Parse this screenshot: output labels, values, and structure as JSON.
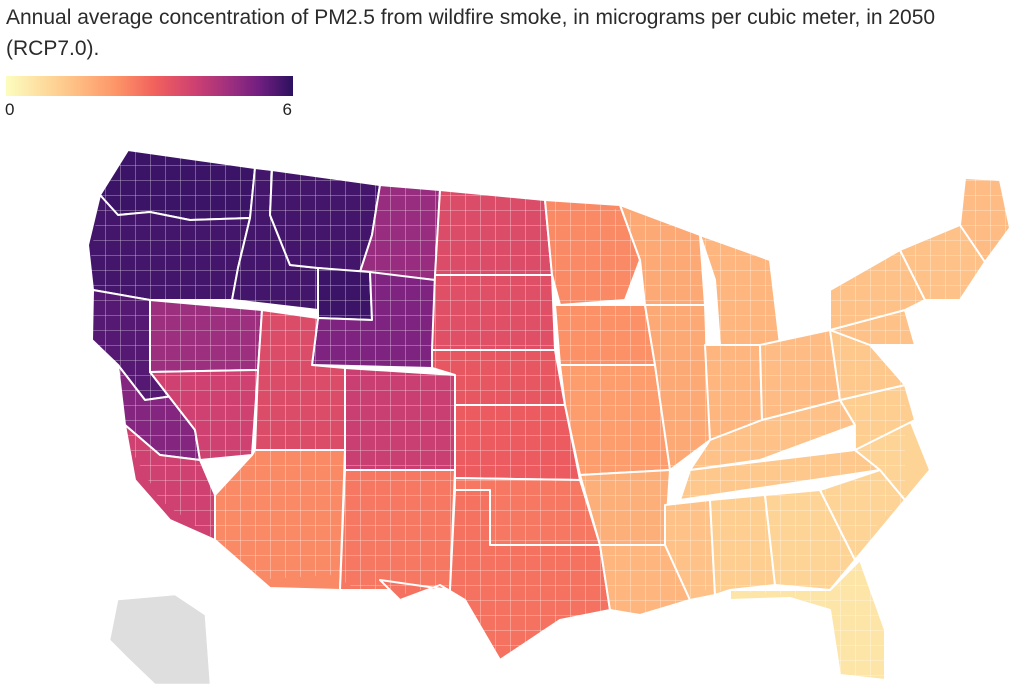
{
  "title": "Annual average concentration of PM2.5 from wildfire smoke, in micrograms per cubic meter, in 2050 (RCP7.0).",
  "legend": {
    "min_label": "0",
    "max_label": "6",
    "colors": [
      "#fcfdbf",
      "#feca8d",
      "#fd9668",
      "#f1605d",
      "#cd4071",
      "#9e2f7f",
      "#721f81",
      "#2c115f"
    ]
  },
  "colors": {
    "background": "#ffffff",
    "state_border": "#ffffff",
    "county_border": "#ffffff",
    "no_data": "#dedede"
  },
  "regions": [
    {
      "id": "washington",
      "value": 5.8
    },
    {
      "id": "oregon",
      "value": 5.7
    },
    {
      "id": "idaho",
      "value": 5.7
    },
    {
      "id": "montana-west",
      "value": 5.7
    },
    {
      "id": "montana-east",
      "value": 4.4
    },
    {
      "id": "wyoming-nw",
      "value": 5.8
    },
    {
      "id": "wyoming-e",
      "value": 4.9
    },
    {
      "id": "california-north",
      "value": 5.5
    },
    {
      "id": "california-central",
      "value": 4.8
    },
    {
      "id": "california-south",
      "value": 3.4
    },
    {
      "id": "nevada-north",
      "value": 4.3
    },
    {
      "id": "nevada-south",
      "value": 3.4
    },
    {
      "id": "utah",
      "value": 3.1
    },
    {
      "id": "colorado",
      "value": 3.5
    },
    {
      "id": "arizona",
      "value": 1.9
    },
    {
      "id": "new-mexico",
      "value": 2.2
    },
    {
      "id": "north-dakota",
      "value": 3.1
    },
    {
      "id": "south-dakota",
      "value": 3.0
    },
    {
      "id": "nebraska",
      "value": 2.8
    },
    {
      "id": "kansas",
      "value": 2.7
    },
    {
      "id": "oklahoma",
      "value": 2.2
    },
    {
      "id": "texas",
      "value": 2.3
    },
    {
      "id": "minnesota",
      "value": 1.9
    },
    {
      "id": "iowa",
      "value": 1.8
    },
    {
      "id": "missouri",
      "value": 1.6
    },
    {
      "id": "arkansas",
      "value": 1.3
    },
    {
      "id": "louisiana",
      "value": 1.2
    },
    {
      "id": "wisconsin",
      "value": 1.4
    },
    {
      "id": "illinois",
      "value": 1.4
    },
    {
      "id": "michigan",
      "value": 1.2
    },
    {
      "id": "indiana",
      "value": 1.2
    },
    {
      "id": "ohio",
      "value": 1.1
    },
    {
      "id": "kentucky",
      "value": 1.0
    },
    {
      "id": "tennessee",
      "value": 0.9
    },
    {
      "id": "mississippi",
      "value": 1.0
    },
    {
      "id": "alabama",
      "value": 0.8
    },
    {
      "id": "georgia",
      "value": 0.7
    },
    {
      "id": "florida",
      "value": 0.4
    },
    {
      "id": "south-carolina",
      "value": 0.7
    },
    {
      "id": "north-carolina",
      "value": 0.7
    },
    {
      "id": "virginia",
      "value": 0.8
    },
    {
      "id": "west-virginia",
      "value": 0.9
    },
    {
      "id": "pennsylvania",
      "value": 1.0
    },
    {
      "id": "new-york",
      "value": 1.0
    },
    {
      "id": "new-england",
      "value": 1.0
    },
    {
      "id": "maine",
      "value": 1.1
    },
    {
      "id": "alaska",
      "value": null
    }
  ]
}
